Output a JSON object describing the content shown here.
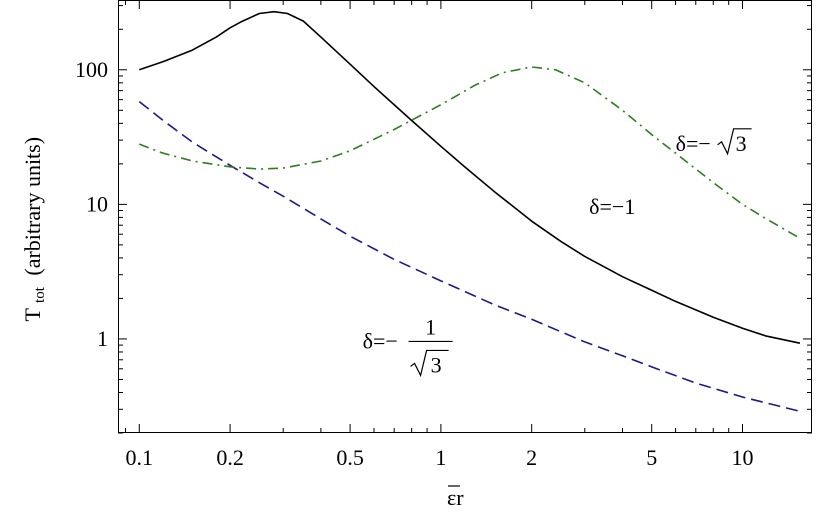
{
  "chart_data": {
    "type": "line",
    "xscale": "log",
    "yscale": "log",
    "xlim": [
      0.085,
      17
    ],
    "ylim": [
      0.2,
      330
    ],
    "xlabel": {
      "main": "εr",
      "bar_over": "ε"
    },
    "ylabel": {
      "main": "T",
      "sub": "tot",
      "rest": "(arbitrary units)"
    },
    "xticks": [
      {
        "value": 0.1,
        "label": "0.1"
      },
      {
        "value": 0.2,
        "label": "0.2"
      },
      {
        "value": 0.5,
        "label": "0.5"
      },
      {
        "value": 1,
        "label": "1"
      },
      {
        "value": 2,
        "label": "2"
      },
      {
        "value": 5,
        "label": "5"
      },
      {
        "value": 10,
        "label": "10"
      }
    ],
    "yticks": [
      {
        "value": 1,
        "label": "1"
      },
      {
        "value": 10,
        "label": "10"
      },
      {
        "value": 100,
        "label": "100"
      }
    ],
    "grid": false,
    "series": [
      {
        "style": "solid",
        "color": "#000000",
        "annotation": "δ=−1",
        "points": [
          [
            0.1,
            100
          ],
          [
            0.12,
            115
          ],
          [
            0.15,
            140
          ],
          [
            0.18,
            175
          ],
          [
            0.2,
            205
          ],
          [
            0.22,
            230
          ],
          [
            0.25,
            262
          ],
          [
            0.28,
            270
          ],
          [
            0.31,
            262
          ],
          [
            0.35,
            230
          ],
          [
            0.4,
            175
          ],
          [
            0.5,
            110
          ],
          [
            0.6,
            75
          ],
          [
            0.7,
            55
          ],
          [
            0.8,
            42
          ],
          [
            1.0,
            27
          ],
          [
            1.2,
            19
          ],
          [
            1.5,
            12.5
          ],
          [
            2.0,
            7.5
          ],
          [
            2.5,
            5.3
          ],
          [
            3.0,
            4.1
          ],
          [
            4.0,
            2.9
          ],
          [
            5.0,
            2.3
          ],
          [
            6.0,
            1.9
          ],
          [
            8.0,
            1.45
          ],
          [
            10.0,
            1.2
          ],
          [
            12.0,
            1.05
          ],
          [
            15.5,
            0.93
          ]
        ]
      },
      {
        "style": "dashed",
        "color": "#1a1a8c",
        "annotation": "δ=−1/√3",
        "points": [
          [
            0.1,
            58
          ],
          [
            0.12,
            42
          ],
          [
            0.15,
            29
          ],
          [
            0.2,
            19.5
          ],
          [
            0.25,
            14.5
          ],
          [
            0.3,
            11.5
          ],
          [
            0.4,
            7.8
          ],
          [
            0.5,
            5.8
          ],
          [
            0.7,
            3.9
          ],
          [
            1.0,
            2.7
          ],
          [
            1.5,
            1.8
          ],
          [
            2.0,
            1.4
          ],
          [
            3.0,
            0.95
          ],
          [
            4.0,
            0.75
          ],
          [
            5.0,
            0.62
          ],
          [
            7.0,
            0.47
          ],
          [
            10.0,
            0.37
          ],
          [
            15.5,
            0.29
          ]
        ]
      },
      {
        "style": "dashdot",
        "color": "#2e7d1e",
        "annotation": "δ=−√3",
        "points": [
          [
            0.1,
            28
          ],
          [
            0.12,
            24
          ],
          [
            0.15,
            21
          ],
          [
            0.2,
            19
          ],
          [
            0.25,
            18.3
          ],
          [
            0.3,
            18.6
          ],
          [
            0.4,
            21
          ],
          [
            0.5,
            25
          ],
          [
            0.7,
            36
          ],
          [
            1.0,
            55
          ],
          [
            1.3,
            77
          ],
          [
            1.6,
            95
          ],
          [
            2.0,
            105
          ],
          [
            2.4,
            100
          ],
          [
            3.0,
            80
          ],
          [
            4.0,
            50
          ],
          [
            5.0,
            33
          ],
          [
            6.0,
            24
          ],
          [
            8.0,
            14.5
          ],
          [
            10.0,
            10
          ],
          [
            12.0,
            7.8
          ],
          [
            15.5,
            5.6
          ]
        ]
      }
    ],
    "annotations": [
      {
        "id": "sqrt3",
        "prefix": "δ=−",
        "radicand": "3",
        "at": [
          6.0,
          25.0
        ]
      },
      {
        "id": "minus1",
        "text": "δ=−1",
        "at": [
          3.1,
          8.5
        ]
      },
      {
        "id": "frac",
        "prefix": "δ=−",
        "numerator": "1",
        "denominator_radicand": "3",
        "at": [
          0.55,
          0.85
        ]
      }
    ]
  }
}
